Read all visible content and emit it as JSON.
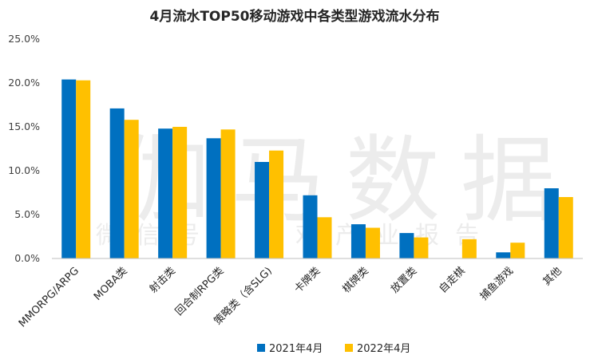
{
  "watermark": {
    "main": "伽马数据",
    "sub": "微信号：游戏产业报告"
  },
  "chart_data": {
    "type": "bar",
    "title": "4月流水TOP50移动游戏中各类型游戏流水分布",
    "categories": [
      "MMORPG/ARPG",
      "MOBA类",
      "射击类",
      "回合制RPG类",
      "策略类（含SLG)",
      "卡牌类",
      "棋牌类",
      "放置类",
      "自走棋",
      "捕鱼游戏",
      "其他"
    ],
    "series": [
      {
        "name": "2021年4月",
        "color": "#0070c0",
        "values": [
          20.4,
          17.1,
          14.8,
          13.7,
          11.0,
          7.2,
          3.9,
          2.9,
          null,
          0.7,
          8.0
        ]
      },
      {
        "name": "2022年4月",
        "color": "#ffc000",
        "values": [
          20.3,
          15.8,
          15.0,
          14.7,
          12.3,
          4.7,
          3.5,
          2.4,
          2.2,
          1.8,
          7.0
        ]
      }
    ],
    "yticks": [
      "0.0%",
      "5.0%",
      "10.0%",
      "15.0%",
      "20.0%",
      "25.0%"
    ],
    "ylim": [
      0,
      25
    ],
    "grid": false,
    "legend": "bottom"
  }
}
